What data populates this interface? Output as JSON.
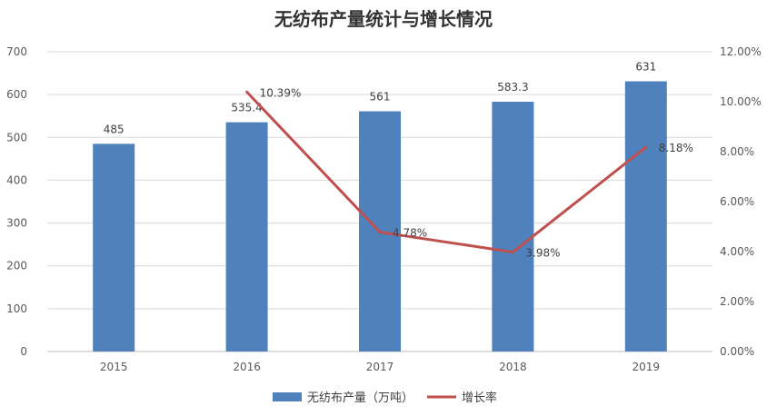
{
  "chart_data": {
    "type": "bar",
    "title": "无纺布产量统计与增长情况",
    "categories": [
      "2015",
      "2016",
      "2017",
      "2018",
      "2019"
    ],
    "series": [
      {
        "name": "无纺布产量（万吨）",
        "type": "bar",
        "axis": "left",
        "values": [
          485,
          535.4,
          561,
          583.3,
          631
        ],
        "labels": [
          "485",
          "535.4",
          "561",
          "583.3",
          "631"
        ],
        "color": "#4f81bd"
      },
      {
        "name": "增长率",
        "type": "line",
        "axis": "right",
        "values": [
          null,
          10.39,
          4.78,
          3.98,
          8.18
        ],
        "labels": [
          "",
          "10.39%",
          "4.78%",
          "3.98%",
          "8.18%"
        ],
        "color": "#c0504d"
      }
    ],
    "ylim_left": [
      0,
      700
    ],
    "yticks_left": [
      "0",
      "100",
      "200",
      "300",
      "400",
      "500",
      "600",
      "700"
    ],
    "ylim_right": [
      0,
      12
    ],
    "yticks_right": [
      "0.00%",
      "2.00%",
      "4.00%",
      "6.00%",
      "8.00%",
      "10.00%",
      "12.00%"
    ],
    "grid": true,
    "legend_position": "bottom-center",
    "gridline_color": "#d9d9d9"
  }
}
